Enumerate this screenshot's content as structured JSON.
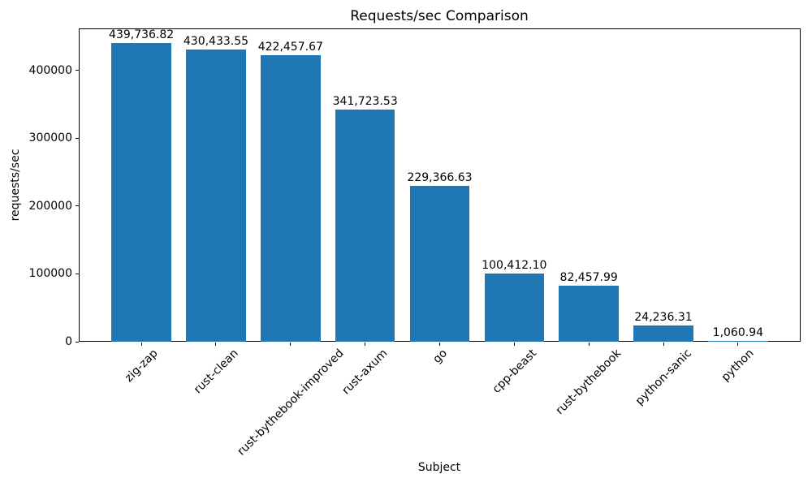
{
  "chart_data": {
    "type": "bar",
    "title": "Requests/sec Comparison",
    "xlabel": "Subject",
    "ylabel": "requests/sec",
    "categories": [
      "zig-zap",
      "rust-clean",
      "rust-bythebook-improved",
      "rust-axum",
      "go",
      "cpp-beast",
      "rust-bythebook",
      "python-sanic",
      "python"
    ],
    "values": [
      439736.82,
      430433.55,
      422457.67,
      341723.53,
      229366.63,
      100412.1,
      82457.99,
      24236.31,
      1060.94
    ],
    "value_labels": [
      "439,736.82",
      "430,433.55",
      "422,457.67",
      "341,723.53",
      "229,366.63",
      "100,412.10",
      "82,457.99",
      "24,236.31",
      "1,060.94"
    ],
    "yticks": [
      0,
      100000,
      200000,
      300000,
      400000
    ],
    "ytick_labels": [
      "0",
      "100000",
      "200000",
      "300000",
      "400000"
    ],
    "ylim": [
      0,
      461723.66
    ],
    "bar_color": "#1f77b4",
    "axis_color": "#000000",
    "grid": false,
    "legend": null,
    "x_tick_rotation_deg": 45
  }
}
